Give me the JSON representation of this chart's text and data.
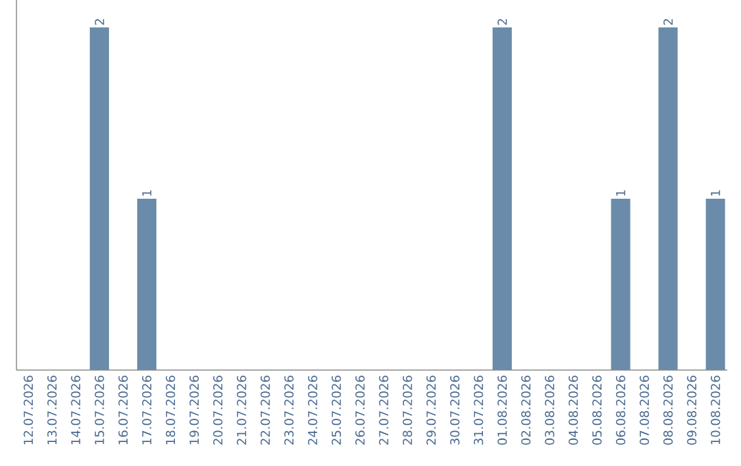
{
  "chart_data": {
    "type": "bar",
    "categories": [
      "12.07.2026",
      "13.07.2026",
      "14.07.2026",
      "15.07.2026",
      "16.07.2026",
      "17.07.2026",
      "18.07.2026",
      "19.07.2026",
      "20.07.2026",
      "21.07.2026",
      "22.07.2026",
      "23.07.2026",
      "24.07.2026",
      "25.07.2026",
      "26.07.2026",
      "27.07.2026",
      "28.07.2026",
      "29.07.2026",
      "30.07.2026",
      "31.07.2026",
      "01.08.2026",
      "02.08.2026",
      "03.08.2026",
      "04.08.2026",
      "05.08.2026",
      "06.08.2026",
      "07.08.2026",
      "08.08.2026",
      "09.08.2026",
      "10.08.2026"
    ],
    "values": [
      0,
      0,
      0,
      2,
      0,
      1,
      0,
      0,
      0,
      0,
      0,
      0,
      0,
      0,
      0,
      0,
      0,
      0,
      0,
      0,
      2,
      0,
      0,
      0,
      0,
      1,
      0,
      2,
      0,
      1
    ],
    "color": "#6a8caa",
    "value_labels": [
      null,
      null,
      null,
      "2",
      null,
      "1",
      null,
      null,
      null,
      null,
      null,
      null,
      null,
      null,
      null,
      null,
      null,
      null,
      null,
      null,
      "2",
      null,
      null,
      null,
      null,
      "1",
      null,
      "2",
      null,
      "1"
    ],
    "tick_labels": "x"
  }
}
